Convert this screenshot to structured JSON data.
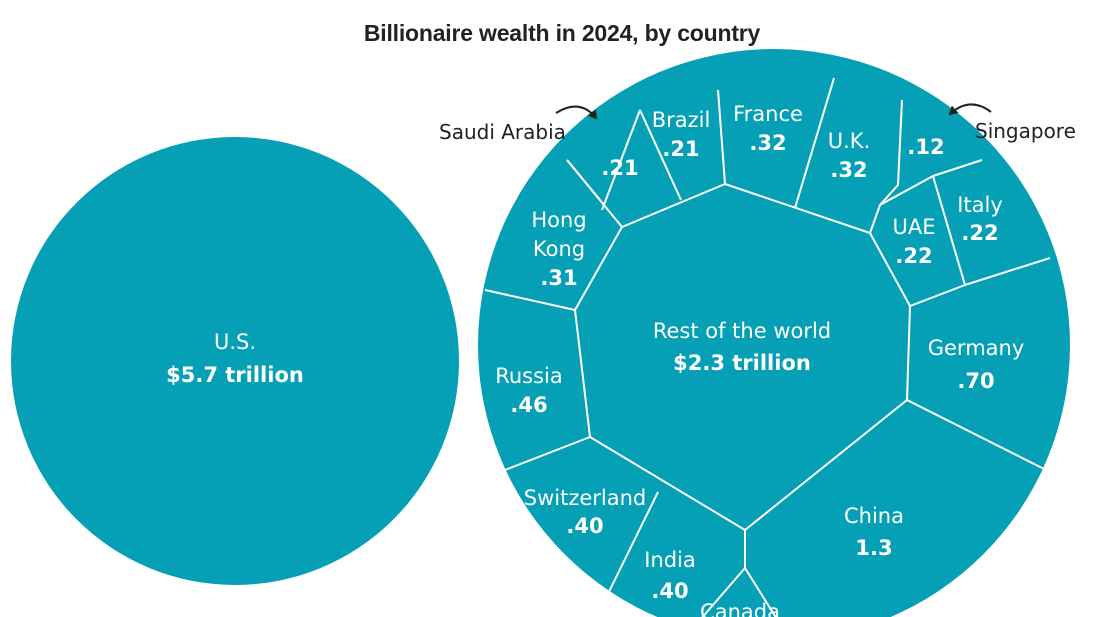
{
  "title": "Billionaire wealth in 2024, by country",
  "colors": {
    "fill": "#05a0b5",
    "border": "#ffffff",
    "text": "#ffffff",
    "annotation": "#222222"
  },
  "chart_data": {
    "type": "bubble-voronoi",
    "title": "Billionaire wealth in 2024, by country",
    "unit": "trillion",
    "us": {
      "label": "U.S.",
      "value_label": "$5.7 trillion",
      "value": 5.7
    },
    "world_center": {
      "label": "Rest of the world",
      "value_label": "$2.3 trillion",
      "value": 2.3
    },
    "countries": [
      {
        "name": "China",
        "value_label": "1.3",
        "value": 1.3
      },
      {
        "name": "Germany",
        "value_label": ".70",
        "value": 0.7
      },
      {
        "name": "Russia",
        "value_label": ".46",
        "value": 0.46
      },
      {
        "name": "Switzerland",
        "value_label": ".40",
        "value": 0.4
      },
      {
        "name": "India",
        "value_label": ".40",
        "value": 0.4
      },
      {
        "name": "France",
        "value_label": ".32",
        "value": 0.32
      },
      {
        "name": "U.K.",
        "value_label": ".32",
        "value": 0.32
      },
      {
        "name": "Hong Kong",
        "value_label": ".31",
        "value": 0.31
      },
      {
        "name": "Italy",
        "value_label": ".22",
        "value": 0.22
      },
      {
        "name": "UAE",
        "value_label": ".22",
        "value": 0.22
      },
      {
        "name": "Brazil",
        "value_label": ".21",
        "value": 0.21
      },
      {
        "name": "Saudi Arabia",
        "value_label": ".21",
        "value": 0.21
      },
      {
        "name": "Singapore",
        "value_label": ".12",
        "value": 0.12
      },
      {
        "name": "Canada",
        "value_label": "",
        "value": null
      }
    ]
  }
}
